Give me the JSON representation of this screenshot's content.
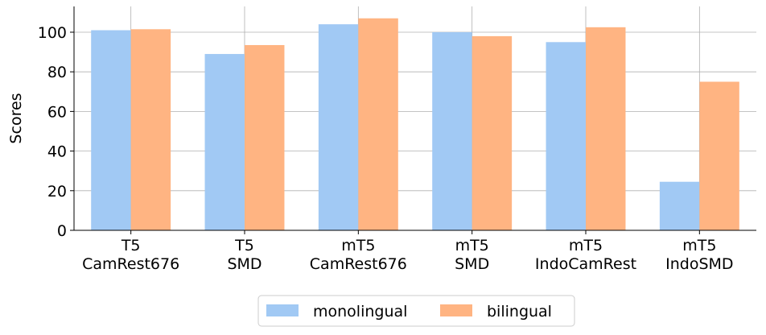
{
  "chart_data": {
    "type": "bar",
    "categories": [
      [
        "T5",
        "CamRest676"
      ],
      [
        "T5",
        "SMD"
      ],
      [
        "mT5",
        "CamRest676"
      ],
      [
        "mT5",
        "SMD"
      ],
      [
        "mT5",
        "IndoCamRest"
      ],
      [
        "mT5",
        "IndoSMD"
      ]
    ],
    "series": [
      {
        "name": "monolingual",
        "color": "#a1c9f4",
        "values": [
          101,
          89,
          104,
          100,
          95,
          24.5
        ]
      },
      {
        "name": "bilingual",
        "color": "#ffb482",
        "values": [
          101.5,
          93.5,
          107,
          98,
          102.5,
          75
        ]
      }
    ],
    "ylabel": "Scores",
    "xlabel": "",
    "ylim": [
      0,
      113
    ],
    "yticks": [
      0,
      20,
      40,
      60,
      80,
      100
    ],
    "grid": true,
    "legend_position": "bottom-center"
  }
}
